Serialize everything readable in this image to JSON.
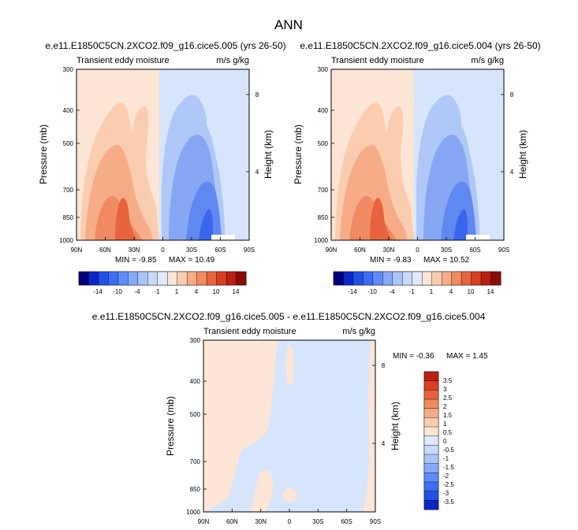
{
  "figure": {
    "title": "ANN"
  },
  "chart_data": [
    {
      "type": "heatmap",
      "title": "e.e11.E1850C5CN.2XCO2.f09_g16.cice5.005 (yrs 26-50)",
      "left_label": "Transient eddy moisture",
      "right_label": "m/s g/kg",
      "xlabel": "",
      "ylabel": "Pressure (mb)",
      "y2label": "Height (km)",
      "x_ticks": [
        "90N",
        "60N",
        "30N",
        "0",
        "30S",
        "60S",
        "90S"
      ],
      "y_ticks": [
        "300",
        "400",
        "500",
        "700",
        "850",
        "1000"
      ],
      "y2_ticks": [
        "8",
        "4"
      ],
      "min_text": "MIN =  -9.85",
      "max_text": "MAX =  10.49",
      "levels": [
        -14,
        -12,
        -10,
        -8,
        -4,
        -2,
        -1,
        -0.5,
        0.5,
        1,
        2,
        4,
        8,
        10,
        12,
        14
      ],
      "cbar_labels": [
        "-14",
        "-10",
        "-4",
        "-1",
        "1",
        "4",
        "10",
        "14"
      ]
    },
    {
      "type": "heatmap",
      "title": "e.e11.E1850C5CN.2XCO2.f09_g16.cice5.004 (yrs 26-50)",
      "left_label": "Transient eddy moisture",
      "right_label": "m/s g/kg",
      "xlabel": "",
      "ylabel": "Pressure (mb)",
      "y2label": "Height (km)",
      "x_ticks": [
        "90N",
        "60N",
        "30N",
        "0",
        "30S",
        "60S",
        "90S"
      ],
      "y_ticks": [
        "300",
        "400",
        "500",
        "700",
        "850",
        "1000"
      ],
      "y2_ticks": [
        "8",
        "4"
      ],
      "min_text": "MIN =  -9.83",
      "max_text": "MAX =  10.52",
      "levels": [
        -14,
        -12,
        -10,
        -8,
        -4,
        -2,
        -1,
        -0.5,
        0.5,
        1,
        2,
        4,
        8,
        10,
        12,
        14
      ],
      "cbar_labels": [
        "-14",
        "-10",
        "-4",
        "-1",
        "1",
        "4",
        "10",
        "14"
      ]
    },
    {
      "type": "heatmap",
      "title": "e.e11.E1850C5CN.2XCO2.f09_g16.cice5.005 - e.e11.E1850C5CN.2XCO2.f09_g16.cice5.004",
      "left_label": "Transient eddy moisture",
      "right_label": "m/s g/kg",
      "xlabel": "",
      "ylabel": "Pressure (mb)",
      "y2label": "Height (km)",
      "x_ticks": [
        "90N",
        "60N",
        "30N",
        "0",
        "30S",
        "60S",
        "90S"
      ],
      "y_ticks": [
        "300",
        "400",
        "500",
        "700",
        "850",
        "1000"
      ],
      "y2_ticks": [
        "8",
        "4"
      ],
      "min_text": "MIN =  -0.36",
      "max_text": "MAX =   1.45",
      "levels": [
        -3.5,
        -3,
        -2.5,
        -2,
        -1.5,
        -1,
        -0.5,
        0,
        0.5,
        1,
        1.5,
        2,
        2.5,
        3,
        3.5
      ],
      "cbar_labels": [
        "3.5",
        "3",
        "2.5",
        "2",
        "1.5",
        "1",
        "0.5",
        "0",
        "-0.5",
        "-1",
        "-1.5",
        "-2",
        "-2.5",
        "-3",
        "-3.5"
      ]
    }
  ],
  "colors": {
    "diverging_blue_to_red": [
      "#00007f",
      "#0a28c8",
      "#2050e6",
      "#3c6ef4",
      "#5e8cfa",
      "#86aaf8",
      "#aac4f8",
      "#c8dafa",
      "#dfe9fb",
      "#fde6d6",
      "#fbcdb0",
      "#f7ac88",
      "#f08a62",
      "#e8643f",
      "#d8401e",
      "#b81f10",
      "#8a0c05"
    ],
    "pos_1": "#fde6d6",
    "pos_2": "#fbcdb0",
    "pos_3": "#f7ac88",
    "pos_4": "#f08a62",
    "pos_5": "#e8643f",
    "neg_1": "#d6e5fb",
    "neg_2": "#b0c8f7",
    "neg_3": "#86a8f4",
    "neg_4": "#5f88f0",
    "neg_5": "#3a66ec"
  }
}
